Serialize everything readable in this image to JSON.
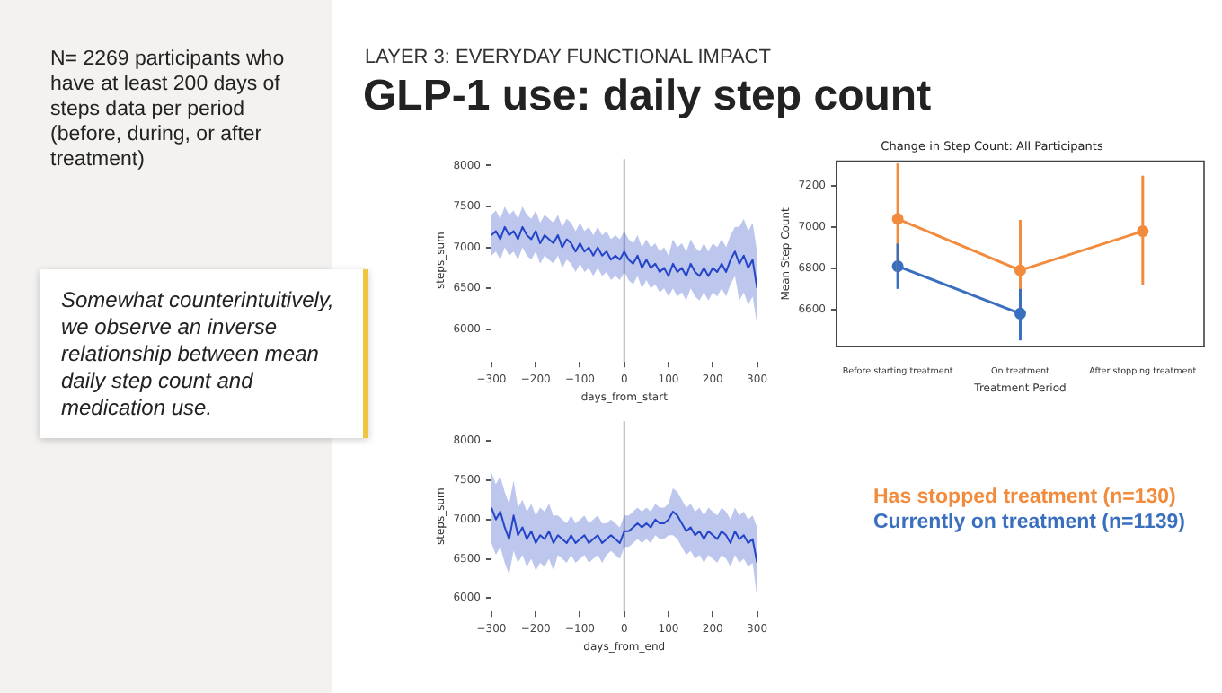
{
  "chart_data": [
    {
      "type": "other",
      "title": "GLP-1 use: daily step count",
      "subtitle": "LAYER 3: EVERYDAY FUNCTIONAL IMPACT",
      "annotations": [
        "N= 2269 participants who have at least 200 days of steps data per period (before, during, or after treatment)",
        "Somewhat counterintuitively, we observe an inverse relationship between mean daily step count and medication use."
      ]
    },
    {
      "type": "line",
      "xlabel": "days_from_start",
      "ylabel": "steps_sum",
      "xlim": [
        -300,
        300
      ],
      "ylim": [
        5600,
        8080
      ],
      "xticks": [
        -300,
        -200,
        -100,
        0,
        100,
        200,
        300
      ],
      "yticks": [
        6000,
        6500,
        7000,
        7500,
        8000
      ],
      "ref_lines": [
        {
          "axis": "x",
          "value": 0,
          "color": "#b0b0b0"
        }
      ],
      "x": [
        -300,
        -290,
        -280,
        -270,
        -260,
        -250,
        -240,
        -230,
        -220,
        -210,
        -200,
        -190,
        -180,
        -170,
        -160,
        -150,
        -140,
        -130,
        -120,
        -110,
        -100,
        -90,
        -80,
        -70,
        -60,
        -50,
        -40,
        -30,
        -20,
        -10,
        0,
        10,
        20,
        30,
        40,
        50,
        60,
        70,
        80,
        90,
        100,
        110,
        120,
        130,
        140,
        150,
        160,
        170,
        180,
        190,
        200,
        210,
        220,
        230,
        240,
        250,
        260,
        270,
        280,
        290,
        300
      ],
      "series": [
        {
          "color": "#2546c8",
          "values": [
            7150,
            7200,
            7100,
            7250,
            7150,
            7200,
            7100,
            7250,
            7150,
            7100,
            7200,
            7050,
            7150,
            7100,
            7050,
            7150,
            7000,
            7100,
            7050,
            6950,
            7050,
            6950,
            7000,
            6900,
            7000,
            6900,
            6950,
            6850,
            6900,
            6850,
            6950,
            6850,
            6800,
            6900,
            6750,
            6850,
            6750,
            6800,
            6700,
            6750,
            6650,
            6800,
            6700,
            6750,
            6650,
            6800,
            6700,
            6650,
            6750,
            6650,
            6750,
            6700,
            6800,
            6700,
            6850,
            6950,
            6800,
            6900,
            6750,
            6850,
            6500
          ],
          "lower": [
            6900,
            6950,
            6850,
            7000,
            6900,
            6950,
            6850,
            7000,
            6900,
            6850,
            6950,
            6800,
            6900,
            6850,
            6800,
            6900,
            6750,
            6850,
            6800,
            6700,
            6800,
            6700,
            6750,
            6650,
            6750,
            6650,
            6700,
            6600,
            6650,
            6600,
            6700,
            6600,
            6550,
            6650,
            6500,
            6600,
            6500,
            6550,
            6450,
            6500,
            6400,
            6500,
            6400,
            6450,
            6350,
            6500,
            6400,
            6350,
            6450,
            6350,
            6450,
            6400,
            6500,
            6400,
            6550,
            6650,
            6350,
            6450,
            6300,
            6400,
            6050
          ],
          "upper": [
            7400,
            7450,
            7350,
            7500,
            7400,
            7450,
            7350,
            7500,
            7400,
            7350,
            7450,
            7300,
            7400,
            7350,
            7300,
            7400,
            7250,
            7350,
            7300,
            7200,
            7300,
            7200,
            7250,
            7150,
            7250,
            7150,
            7200,
            7100,
            7150,
            7100,
            7200,
            7100,
            7050,
            7150,
            7000,
            7100,
            7000,
            7050,
            6950,
            7000,
            6900,
            7100,
            7000,
            7050,
            6950,
            7100,
            7000,
            6950,
            7050,
            6950,
            7050,
            7000,
            7100,
            7000,
            7150,
            7250,
            7250,
            7350,
            7200,
            7300,
            6950
          ]
        }
      ]
    },
    {
      "type": "line",
      "xlabel": "days_from_end",
      "ylabel": "steps_sum",
      "xlim": [
        -300,
        300
      ],
      "ylim": [
        5830,
        8250
      ],
      "xticks": [
        -300,
        -200,
        -100,
        0,
        100,
        200,
        300
      ],
      "yticks": [
        6000,
        6500,
        7000,
        7500,
        8000
      ],
      "ref_lines": [
        {
          "axis": "x",
          "value": 0,
          "color": "#b0b0b0"
        }
      ],
      "x": [
        -300,
        -290,
        -280,
        -270,
        -260,
        -250,
        -240,
        -230,
        -220,
        -210,
        -200,
        -190,
        -180,
        -170,
        -160,
        -150,
        -140,
        -130,
        -120,
        -110,
        -100,
        -90,
        -80,
        -70,
        -60,
        -50,
        -40,
        -30,
        -20,
        -10,
        0,
        10,
        20,
        30,
        40,
        50,
        60,
        70,
        80,
        90,
        100,
        110,
        120,
        130,
        140,
        150,
        160,
        170,
        180,
        190,
        200,
        210,
        220,
        230,
        240,
        250,
        260,
        270,
        280,
        290,
        300
      ],
      "series": [
        {
          "color": "#2546c8",
          "values": [
            7150,
            7000,
            7100,
            6900,
            6750,
            7050,
            6800,
            6900,
            6750,
            6850,
            6700,
            6800,
            6750,
            6850,
            6700,
            6800,
            6750,
            6700,
            6800,
            6700,
            6750,
            6800,
            6700,
            6750,
            6800,
            6700,
            6750,
            6800,
            6750,
            6700,
            6850,
            6850,
            6900,
            6950,
            6900,
            6950,
            6900,
            7000,
            6950,
            6950,
            7000,
            7100,
            7050,
            6950,
            6850,
            6900,
            6800,
            6850,
            6750,
            6850,
            6800,
            6750,
            6850,
            6800,
            6700,
            6850,
            6750,
            6800,
            6700,
            6750,
            6450
          ],
          "lower": [
            6700,
            6550,
            6650,
            6450,
            6300,
            6600,
            6450,
            6550,
            6400,
            6500,
            6350,
            6450,
            6400,
            6500,
            6350,
            6550,
            6500,
            6450,
            6550,
            6450,
            6500,
            6550,
            6450,
            6500,
            6550,
            6450,
            6550,
            6600,
            6550,
            6500,
            6650,
            6650,
            6700,
            6750,
            6700,
            6750,
            6700,
            6800,
            6750,
            6750,
            6800,
            6800,
            6750,
            6650,
            6550,
            6600,
            6500,
            6550,
            6450,
            6550,
            6500,
            6450,
            6550,
            6500,
            6400,
            6550,
            6450,
            6500,
            6400,
            6450,
            6000
          ],
          "upper": [
            7600,
            7450,
            7550,
            7350,
            7200,
            7500,
            7150,
            7250,
            7100,
            7200,
            7050,
            7150,
            7100,
            7200,
            7050,
            7050,
            7000,
            6950,
            7050,
            6950,
            7000,
            7050,
            6950,
            7000,
            7050,
            6950,
            6950,
            7000,
            6950,
            6900,
            7050,
            7050,
            7100,
            7150,
            7100,
            7150,
            7100,
            7200,
            7150,
            7150,
            7200,
            7400,
            7350,
            7250,
            7150,
            7200,
            7100,
            7150,
            7050,
            7150,
            7100,
            7050,
            7150,
            7100,
            7000,
            7150,
            7050,
            7100,
            7000,
            7050,
            6900
          ]
        }
      ]
    },
    {
      "type": "line",
      "title": "Change in Step Count: All Participants",
      "xlabel": "Treatment Period",
      "ylabel": "Mean Step Count",
      "categories": [
        "Before starting treatment",
        "On treatment",
        "After stopping treatment"
      ],
      "ylim": [
        6420,
        7320
      ],
      "yticks": [
        6600,
        6800,
        7000,
        7200
      ],
      "marker": "circle",
      "legend": "bottom",
      "series": [
        {
          "name": "Has stopped treatment (n=130)",
          "color": "#f28b3c",
          "values": [
            7040,
            6790,
            6980
          ],
          "errors": [
            [
              6780,
              7310
            ],
            [
              6545,
              7035
            ],
            [
              6720,
              7250
            ]
          ]
        },
        {
          "name": "Currently on treatment (n=1139)",
          "color": "#3a6fc0",
          "values": [
            6810,
            6580,
            null
          ],
          "errors": [
            [
              6700,
              6920
            ],
            [
              6450,
              6700
            ],
            null
          ]
        }
      ]
    }
  ]
}
